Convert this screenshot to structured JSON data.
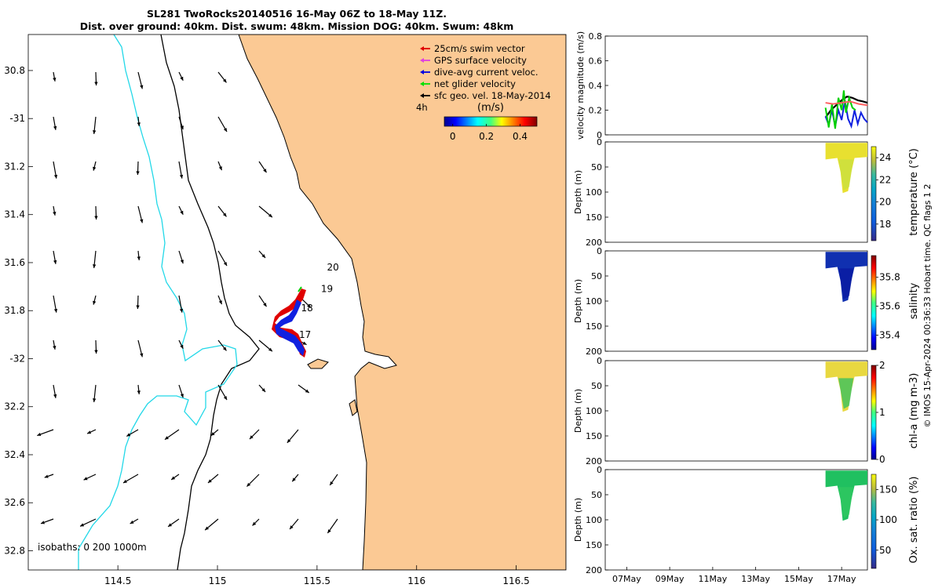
{
  "title": {
    "line1": "SL281 TwoRocks20140516 16-May 06Z to 18-May 11Z.",
    "line2": "Dist. over ground: 40km. Dist. swum: 48km. Mission DOG: 40km. Swum: 48km"
  },
  "map": {
    "lon_range": [
      114.05,
      116.75
    ],
    "lat_range": [
      -32.88,
      -30.65
    ],
    "lon_ticks": [
      114.5,
      115,
      115.5,
      116,
      116.5
    ],
    "lon_tick_labels": [
      "114.5",
      "115",
      "115.5",
      "116",
      "116.5"
    ],
    "lat_ticks": [
      -30.8,
      -31,
      -31.2,
      -31.4,
      -31.6,
      -31.8,
      -32,
      -32.2,
      -32.4,
      -32.6,
      -32.8
    ],
    "lat_tick_labels": [
      "30.8",
      "-31",
      "31.2",
      "31.4",
      "31.6",
      "31.8",
      "-32",
      "32.2",
      "32.4",
      "32.6",
      "32.8"
    ],
    "legend": [
      {
        "label": "25cm/s swim vector",
        "color": "#e00000"
      },
      {
        "label": "GPS surface velocity",
        "color": "#e040e0"
      },
      {
        "label": "dive-avg current veloc.",
        "color": "#0000e0"
      },
      {
        "label": "net glider velocity",
        "color": "#00e000"
      },
      {
        "label": "sfc geo. vel. 18-May-2014",
        "color": "#000000"
      }
    ],
    "time_label": "4h",
    "colorbar": {
      "label": "(m/s)",
      "ticks": [
        0,
        0.2,
        0.4
      ],
      "tick_labels": [
        "0",
        "0.2",
        "0.4"
      ],
      "range": [
        -0.05,
        0.5
      ]
    },
    "day_labels": [
      {
        "text": "20",
        "lon": 115.58,
        "lat": -31.62
      },
      {
        "text": "19",
        "lon": 115.55,
        "lat": -31.71
      },
      {
        "text": "18",
        "lon": 115.45,
        "lat": -31.79
      },
      {
        "text": "17",
        "lon": 115.44,
        "lat": -31.9
      }
    ],
    "isobaths_label": "isobaths: 0   200  1000m",
    "colors": {
      "land": "#fbc994",
      "isobath_200": "#000000",
      "isobath_1000": "#22d8e8",
      "swim": "#e00000",
      "current": "#1020e0"
    }
  },
  "profiles": {
    "time_range": [
      6,
      18.2
    ],
    "time_ticks": [
      7,
      9,
      11,
      13,
      15,
      17
    ],
    "time_tick_labels": [
      "07May",
      "09May",
      "11May",
      "13May",
      "15May",
      "17May"
    ],
    "velocity": {
      "ylabel": "velocity magnitude (m/s)",
      "ylim": [
        0,
        0.8
      ],
      "yticks": [
        0,
        0.2,
        0.4,
        0.6,
        0.8
      ],
      "ytick_labels": [
        "0",
        "0.2",
        "0.4",
        "0.6",
        "0.8"
      ],
      "series": [
        {
          "color": "#000000",
          "t": [
            16.25,
            16.5,
            16.75,
            17.0,
            17.25,
            17.5,
            17.75,
            18.0,
            18.2
          ],
          "v": [
            0.14,
            0.2,
            0.24,
            0.28,
            0.31,
            0.3,
            0.28,
            0.27,
            0.26
          ]
        },
        {
          "color": "#1020e0",
          "t": [
            16.25,
            16.4,
            16.55,
            16.7,
            16.85,
            17.0,
            17.15,
            17.3,
            17.45,
            17.6,
            17.75,
            17.9,
            18.05,
            18.2
          ],
          "v": [
            0.15,
            0.08,
            0.2,
            0.07,
            0.2,
            0.12,
            0.28,
            0.13,
            0.07,
            0.2,
            0.09,
            0.18,
            0.13,
            0.1
          ]
        },
        {
          "color": "#00d000",
          "t": [
            16.25,
            16.4,
            16.55,
            16.7,
            16.85,
            17.0,
            17.1,
            17.2,
            17.35,
            17.5,
            17.65
          ],
          "v": [
            0.22,
            0.06,
            0.25,
            0.05,
            0.3,
            0.2,
            0.36,
            0.18,
            0.3,
            0.22,
            0.2
          ]
        },
        {
          "color": "#ff6060",
          "t": [
            16.25,
            16.6,
            17.0,
            17.4,
            17.8,
            18.2
          ],
          "v": [
            0.26,
            0.25,
            0.26,
            0.27,
            0.25,
            0.24
          ]
        }
      ]
    },
    "panels": [
      {
        "ylabel": "Depth (m)",
        "clabel": "temperature (°C)",
        "yticks": [
          0,
          50,
          100,
          150,
          200
        ],
        "ytick_labels": [
          "0",
          "50",
          "100",
          "150",
          "200"
        ],
        "cticks": [
          18,
          20,
          22,
          24
        ],
        "ctick_labels": [
          "18",
          "20",
          "22",
          "24"
        ],
        "crange": [
          16.5,
          25
        ],
        "fill": "#e8e030",
        "deep_fill": "#c8e040"
      },
      {
        "ylabel": "Depth (m)",
        "clabel": "salinity",
        "yticks": [
          0,
          50,
          100,
          150,
          200
        ],
        "ytick_labels": [
          "0",
          "50",
          "100",
          "150",
          "200"
        ],
        "cticks": [
          35.4,
          35.6,
          35.8
        ],
        "ctick_labels": [
          "35.4",
          "35.6",
          "35.8"
        ],
        "crange": [
          35.3,
          35.95
        ],
        "fill": "#1030b0",
        "deep_fill": "#0818a0"
      },
      {
        "ylabel": "Depth (m)",
        "clabel": "chl-a (mg m-3)",
        "yticks": [
          0,
          50,
          100,
          150,
          200
        ],
        "ytick_labels": [
          "0",
          "50",
          "100",
          "150",
          "200"
        ],
        "cticks": [
          0,
          1,
          2
        ],
        "ctick_labels": [
          "0",
          "1",
          "2"
        ],
        "crange": [
          0,
          2
        ],
        "fill": "#e8d840",
        "deep_fill": "#30c060"
      },
      {
        "ylabel": "Depth (m)",
        "clabel": "Ox. sat. ratio (%)",
        "yticks": [
          0,
          50,
          100,
          150,
          200
        ],
        "ytick_labels": [
          "0",
          "50",
          "100",
          "150",
          "200"
        ],
        "cticks": [
          50,
          100,
          150
        ],
        "ctick_labels": [
          "50",
          "100",
          "150"
        ],
        "crange": [
          20,
          175
        ],
        "fill": "#20c060",
        "deep_fill": "#30c860"
      }
    ]
  },
  "footer": "© IMOS 15-Apr-2024 00:36:33 Hobart time. QC flags 1  2"
}
